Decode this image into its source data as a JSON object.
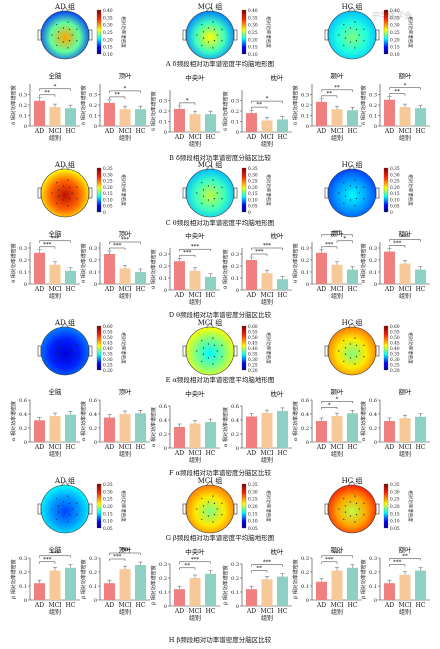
{
  "watermark": "中华医学会",
  "colors": {
    "AD": "#f08080",
    "MCI": "#f7c998",
    "HC": "#8fd0c4",
    "axis": "#333333"
  },
  "panel_captions": [
    "A δ频段相对功率谱密度平均脑地形图",
    "B δ频段相对功率谱密度分脑区比较",
    "C θ频段相对功率谱密度平均脑地形图",
    "D θ频段相对功率谱密度分脑区比较",
    "E α频段相对功率谱密度平均脑地形图",
    "F α频段相对功率谱密度分脑区比较",
    "G β频段相对功率谱密度平均脑地形图",
    "H β频段相对功率谱密度分脑区比较"
  ],
  "topo_groups": [
    "AD 组",
    "MCI 组",
    "HC 组"
  ],
  "colorbar_label": "相对功率谱密度",
  "x_axis_title": "组别",
  "chart_data": [
    {
      "band": "δ",
      "type": "topomap",
      "colorbar_ticks": [
        "0.40",
        "0.35",
        "0.30",
        "0.25",
        "0.20",
        "0.15",
        "0.10"
      ]
    },
    {
      "band": "δ",
      "type": "bar",
      "ylabel": "δ 相对功率谱密度",
      "categories": [
        "AD",
        "MCI",
        "HC"
      ],
      "ylim": [
        0,
        0.4
      ],
      "yticks": [
        "0",
        "0.1",
        "0.2",
        "0.3"
      ],
      "regions": [
        {
          "name": "全脑",
          "values": [
            0.24,
            0.18,
            0.17
          ],
          "sig": [
            {
              "pair": [
                0,
                1
              ],
              "label": "**"
            },
            {
              "pair": [
                0,
                2
              ],
              "label": "*"
            }
          ]
        },
        {
          "name": "顶叶",
          "values": [
            0.22,
            0.16,
            0.16
          ],
          "sig": [
            {
              "pair": [
                0,
                1
              ],
              "label": "**"
            },
            {
              "pair": [
                0,
                2
              ],
              "label": "*"
            }
          ]
        },
        {
          "name": "中央叶",
          "values": [
            0.22,
            0.17,
            0.17
          ],
          "sig": [
            {
              "pair": [
                0,
                1
              ],
              "label": "*"
            }
          ]
        },
        {
          "name": "枕叶",
          "values": [
            0.18,
            0.11,
            0.12
          ],
          "sig": [
            {
              "pair": [
                0,
                1
              ],
              "label": "**"
            },
            {
              "pair": [
                0,
                2
              ],
              "label": "*"
            }
          ]
        },
        {
          "name": "颞叶",
          "values": [
            0.23,
            0.16,
            0.15
          ],
          "sig": [
            {
              "pair": [
                0,
                1
              ],
              "label": "**"
            },
            {
              "pair": [
                0,
                2
              ],
              "label": "**"
            }
          ]
        },
        {
          "name": "额叶",
          "values": [
            0.25,
            0.18,
            0.17
          ],
          "sig": [
            {
              "pair": [
                0,
                1
              ],
              "label": "**"
            },
            {
              "pair": [
                0,
                2
              ],
              "label": "*"
            }
          ]
        }
      ]
    },
    {
      "band": "θ",
      "type": "topomap",
      "colorbar_ticks": [
        "0.35",
        "0.30",
        "0.25",
        "0.20",
        "0.15",
        "0.10",
        "0.05",
        "0"
      ]
    },
    {
      "band": "θ",
      "type": "bar",
      "ylabel": "θ 相对功率谱密度",
      "categories": [
        "AD",
        "MCI",
        "HC"
      ],
      "ylim": [
        0,
        0.35
      ],
      "yticks": [
        "0",
        "0.1",
        "0.2",
        "0.3"
      ],
      "regions": [
        {
          "name": "全脑",
          "values": [
            0.26,
            0.16,
            0.11
          ],
          "sig": [
            {
              "pair": [
                0,
                1
              ],
              "label": "***"
            },
            {
              "pair": [
                0,
                2
              ],
              "label": "***"
            }
          ]
        },
        {
          "name": "顶叶",
          "values": [
            0.25,
            0.13,
            0.1
          ],
          "sig": [
            {
              "pair": [
                0,
                1
              ],
              "label": "***"
            },
            {
              "pair": [
                0,
                2
              ],
              "label": "***"
            }
          ]
        },
        {
          "name": "中央叶",
          "values": [
            0.24,
            0.16,
            0.11
          ],
          "sig": [
            {
              "pair": [
                0,
                1
              ],
              "label": "***"
            },
            {
              "pair": [
                0,
                2
              ],
              "label": "***"
            }
          ]
        },
        {
          "name": "枕叶",
          "values": [
            0.25,
            0.14,
            0.09
          ],
          "sig": [
            {
              "pair": [
                0,
                1
              ],
              "label": "***"
            },
            {
              "pair": [
                0,
                2
              ],
              "label": "***"
            }
          ]
        },
        {
          "name": "颞叶",
          "values": [
            0.26,
            0.16,
            0.12
          ],
          "sig": [
            {
              "pair": [
                0,
                1
              ],
              "label": "***"
            },
            {
              "pair": [
                1,
                2
              ],
              "label": "*"
            },
            {
              "pair": [
                0,
                2
              ],
              "label": "***"
            }
          ]
        },
        {
          "name": "额叶",
          "values": [
            0.27,
            0.17,
            0.12
          ],
          "sig": [
            {
              "pair": [
                0,
                1
              ],
              "label": "***"
            },
            {
              "pair": [
                0,
                2
              ],
              "label": "***"
            }
          ]
        }
      ]
    },
    {
      "band": "α",
      "type": "topomap",
      "colorbar_ticks": [
        "0.60",
        "0.55",
        "0.50",
        "0.45",
        "0.40",
        "0.35",
        "0.30",
        "0.25",
        "0.20"
      ]
    },
    {
      "band": "α",
      "type": "bar",
      "ylabel": "α 相对功率谱密度",
      "categories": [
        "AD",
        "MCI",
        "HC"
      ],
      "ylim": [
        0,
        0.6
      ],
      "yticks": [
        "0",
        "0.2",
        "0.4",
        "0.6"
      ],
      "regions": [
        {
          "name": "全脑",
          "values": [
            0.31,
            0.37,
            0.39
          ],
          "sig": []
        },
        {
          "name": "顶叶",
          "values": [
            0.35,
            0.4,
            0.41
          ],
          "sig": []
        },
        {
          "name": "中央叶",
          "values": [
            0.3,
            0.35,
            0.37
          ],
          "sig": []
        },
        {
          "name": "枕叶",
          "values": [
            0.45,
            0.5,
            0.53
          ],
          "sig": []
        },
        {
          "name": "颞叶",
          "values": [
            0.3,
            0.37,
            0.41
          ],
          "sig": [
            {
              "pair": [
                0,
                1
              ],
              "label": "*"
            },
            {
              "pair": [
                0,
                2
              ],
              "label": "*"
            }
          ]
        },
        {
          "name": "额叶",
          "values": [
            0.3,
            0.34,
            0.36
          ],
          "sig": []
        }
      ]
    },
    {
      "band": "β",
      "type": "topomap",
      "colorbar_ticks": [
        "0.35",
        "0.30",
        "0.25",
        "0.20",
        "0.15",
        "0.10",
        "0.05"
      ]
    },
    {
      "band": "β",
      "type": "bar",
      "ylabel": "β 相对功率谱密度",
      "categories": [
        "AD",
        "MCI",
        "HC"
      ],
      "ylim": [
        0,
        0.3
      ],
      "yticks": [
        "0",
        "0.1",
        "0.2",
        "0.3"
      ],
      "regions": [
        {
          "name": "全脑",
          "values": [
            0.12,
            0.21,
            0.23
          ],
          "sig": [
            {
              "pair": [
                0,
                1
              ],
              "label": "***"
            },
            {
              "pair": [
                0,
                2
              ],
              "label": "***"
            }
          ]
        },
        {
          "name": "顶叶",
          "values": [
            0.12,
            0.22,
            0.25
          ],
          "sig": [
            {
              "pair": [
                0,
                1
              ],
              "label": "***"
            },
            {
              "pair": [
                0,
                2
              ],
              "label": "***"
            }
          ]
        },
        {
          "name": "中央叶",
          "values": [
            0.12,
            0.2,
            0.23
          ],
          "sig": [
            {
              "pair": [
                0,
                1
              ],
              "label": "**"
            },
            {
              "pair": [
                0,
                2
              ],
              "label": "***"
            }
          ]
        },
        {
          "name": "枕叶",
          "values": [
            0.12,
            0.19,
            0.21
          ],
          "sig": [
            {
              "pair": [
                0,
                1
              ],
              "label": "**"
            },
            {
              "pair": [
                0,
                2
              ],
              "label": "***"
            }
          ]
        },
        {
          "name": "颞叶",
          "values": [
            0.13,
            0.21,
            0.23
          ],
          "sig": [
            {
              "pair": [
                0,
                1
              ],
              "label": "***"
            },
            {
              "pair": [
                0,
                2
              ],
              "label": "***"
            }
          ]
        },
        {
          "name": "额叶",
          "values": [
            0.12,
            0.18,
            0.21
          ],
          "sig": [
            {
              "pair": [
                0,
                1
              ],
              "label": "***"
            },
            {
              "pair": [
                0,
                2
              ],
              "label": "**"
            }
          ]
        }
      ]
    }
  ]
}
